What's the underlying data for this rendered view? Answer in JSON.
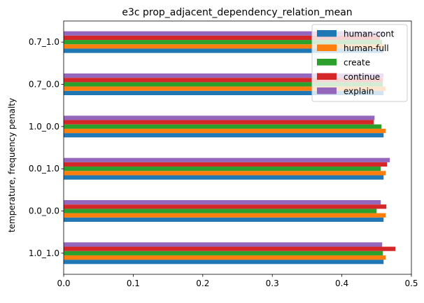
{
  "chart_data": {
    "type": "bar",
    "orientation": "horizontal",
    "title": "e3c prop_adjacent_dependency_relation_mean",
    "xlabel": "",
    "ylabel": "temperature, frequency penalty",
    "xlim": [
      0,
      0.5
    ],
    "xticks": [
      "0.0",
      "0.1",
      "0.2",
      "0.3",
      "0.4",
      "0.5"
    ],
    "categories": [
      "1.0_1.0",
      "0.0_0.0",
      "0.0_1.0",
      "1.0_0.0",
      "0.7_0.0",
      "0.7_1.0"
    ],
    "legend_position": "top-right",
    "grid": false,
    "series": [
      {
        "name": "human-cont",
        "color": "#1f77b4",
        "values": [
          0.46,
          0.46,
          0.46,
          0.46,
          0.46,
          0.46
        ]
      },
      {
        "name": "human-full",
        "color": "#ff7f0e",
        "values": [
          0.463,
          0.463,
          0.463,
          0.463,
          0.463,
          0.463
        ]
      },
      {
        "name": "create",
        "color": "#2ca02c",
        "values": [
          0.459,
          0.45,
          0.456,
          0.457,
          0.459,
          0.458
        ]
      },
      {
        "name": "continue",
        "color": "#d62728",
        "values": [
          0.477,
          0.464,
          0.465,
          0.446,
          0.459,
          0.455
        ]
      },
      {
        "name": "explain",
        "color": "#9467bd",
        "values": [
          0.458,
          0.456,
          0.469,
          0.447,
          0.46,
          0.46
        ]
      }
    ]
  }
}
